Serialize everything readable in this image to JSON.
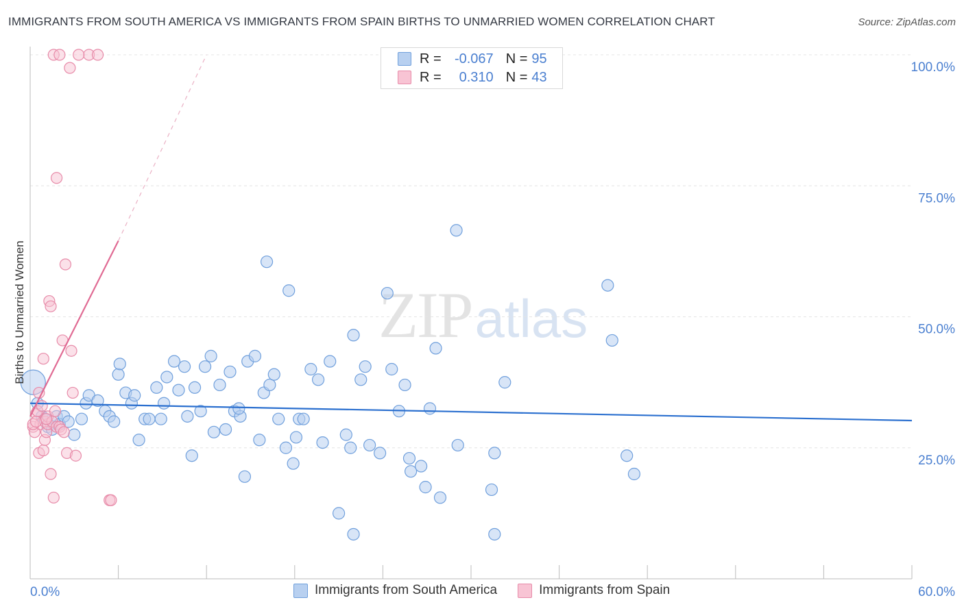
{
  "title": "IMMIGRANTS FROM SOUTH AMERICA VS IMMIGRANTS FROM SPAIN BIRTHS TO UNMARRIED WOMEN CORRELATION CHART",
  "source": "Source: ZipAtlas.com",
  "watermark": {
    "zip": "ZIP",
    "atlas": "atlas"
  },
  "legend": {
    "rows": [
      {
        "r_label": "R =",
        "r_value": "-0.067",
        "n_label": "N =",
        "n_value": "95"
      },
      {
        "r_label": "R =",
        "r_value": "0.310",
        "n_label": "N =",
        "n_value": "43"
      }
    ]
  },
  "colors": {
    "blue_fill": "#b8d0f0",
    "blue_stroke": "#6f9fdc",
    "blue_line": "#2a6fcf",
    "pink_fill": "#f8c4d4",
    "pink_stroke": "#e78aa8",
    "pink_line": "#e06a93",
    "grid": "#e4e4e4",
    "axis_text": "#4a7fd0"
  },
  "chart_data": {
    "type": "scatter",
    "title": "IMMIGRANTS FROM SOUTH AMERICA VS IMMIGRANTS FROM SPAIN BIRTHS TO UNMARRIED WOMEN CORRELATION CHART",
    "xlabel": "",
    "ylabel": "Births to Unmarried Women",
    "xlim": [
      0,
      60
    ],
    "ylim": [
      0,
      100
    ],
    "x_tick_labels": [
      "0.0%",
      "60.0%"
    ],
    "y_ticks": [
      25,
      50,
      75,
      100
    ],
    "y_tick_labels": [
      "25.0%",
      "50.0%",
      "75.0%",
      "100.0%"
    ],
    "series": [
      {
        "name": "Immigrants from South America",
        "color": "blue",
        "r": -0.067,
        "n": 95,
        "trend": {
          "x": [
            0,
            60
          ],
          "y": [
            33.5,
            30.2
          ]
        },
        "points": [
          [
            0.2,
            37.5
          ],
          [
            0.5,
            33.5
          ],
          [
            0.8,
            31
          ],
          [
            1,
            30.5
          ],
          [
            1.2,
            29
          ],
          [
            1.5,
            28.5
          ],
          [
            1.8,
            31
          ],
          [
            2,
            29.5
          ],
          [
            2.3,
            31
          ],
          [
            2.6,
            30
          ],
          [
            3,
            27.5
          ],
          [
            3.5,
            30.5
          ],
          [
            3.8,
            33.5
          ],
          [
            4,
            35
          ],
          [
            4.6,
            34
          ],
          [
            5.1,
            32
          ],
          [
            5.4,
            31
          ],
          [
            5.7,
            30
          ],
          [
            6,
            39
          ],
          [
            6.5,
            35.5
          ],
          [
            6.1,
            41
          ],
          [
            6.9,
            33.5
          ],
          [
            7.4,
            26.5
          ],
          [
            7.1,
            35
          ],
          [
            7.8,
            30.5
          ],
          [
            8.1,
            30.5
          ],
          [
            8.6,
            36.5
          ],
          [
            8.9,
            30.5
          ],
          [
            9.3,
            38.5
          ],
          [
            9.1,
            33.5
          ],
          [
            9.8,
            41.5
          ],
          [
            10.1,
            36
          ],
          [
            10.5,
            40.5
          ],
          [
            10.7,
            31
          ],
          [
            11,
            23.5
          ],
          [
            11.2,
            36.5
          ],
          [
            11.6,
            32
          ],
          [
            11.9,
            40.5
          ],
          [
            12.3,
            42.5
          ],
          [
            12.5,
            28
          ],
          [
            12.9,
            37
          ],
          [
            13.3,
            28.5
          ],
          [
            13.6,
            39.5
          ],
          [
            13.9,
            32
          ],
          [
            14.3,
            31
          ],
          [
            14.8,
            41.5
          ],
          [
            14.6,
            19.5
          ],
          [
            14.2,
            32.5
          ],
          [
            15.3,
            42.5
          ],
          [
            15.9,
            35.5
          ],
          [
            15.6,
            26.5
          ],
          [
            16.3,
            37
          ],
          [
            16.6,
            39
          ],
          [
            16.1,
            60.5
          ],
          [
            16.9,
            30.5
          ],
          [
            17.4,
            25
          ],
          [
            17.9,
            22
          ],
          [
            17.6,
            55
          ],
          [
            18.1,
            27
          ],
          [
            18.3,
            30.5
          ],
          [
            18.6,
            30.5
          ],
          [
            19.1,
            40
          ],
          [
            19.6,
            38
          ],
          [
            19.9,
            26
          ],
          [
            20.4,
            41.5
          ],
          [
            21,
            12.5
          ],
          [
            21.5,
            27.5
          ],
          [
            21.8,
            25
          ],
          [
            22,
            46.5
          ],
          [
            22.5,
            38
          ],
          [
            22.8,
            40.5
          ],
          [
            23.1,
            25.5
          ],
          [
            23.8,
            24
          ],
          [
            24.3,
            54.5
          ],
          [
            24.6,
            40
          ],
          [
            25.1,
            32
          ],
          [
            25.5,
            37
          ],
          [
            25.8,
            23
          ],
          [
            25.9,
            20.5
          ],
          [
            26.6,
            21.5
          ],
          [
            26.9,
            17.5
          ],
          [
            27.2,
            32.5
          ],
          [
            27.6,
            44
          ],
          [
            27.9,
            15.5
          ],
          [
            29.1,
            25.5
          ],
          [
            29,
            66.5
          ],
          [
            31.4,
            17
          ],
          [
            31.6,
            24
          ],
          [
            31.6,
            8.5
          ],
          [
            32.3,
            37.5
          ],
          [
            39.3,
            56
          ],
          [
            39.6,
            45.5
          ],
          [
            40.6,
            23.5
          ],
          [
            41.1,
            20
          ],
          [
            22,
            8.5
          ]
        ],
        "big_point_radius_note": "one enlarged point at x=0.2"
      },
      {
        "name": "Immigrants from Spain",
        "color": "pink",
        "r": 0.31,
        "n": 43,
        "trend": {
          "x": [
            0,
            6
          ],
          "y": [
            31,
            64.5
          ]
        },
        "trend_extension": {
          "x": [
            6,
            12
          ],
          "y": [
            64.5,
            100
          ]
        },
        "points": [
          [
            0.2,
            29
          ],
          [
            0.3,
            28
          ],
          [
            0.4,
            31.5
          ],
          [
            0.5,
            32
          ],
          [
            0.6,
            35.5
          ],
          [
            0.6,
            24
          ],
          [
            0.7,
            29.5
          ],
          [
            0.8,
            33
          ],
          [
            0.9,
            24.5
          ],
          [
            1,
            26.5
          ],
          [
            1,
            30
          ],
          [
            1.1,
            28
          ],
          [
            1.2,
            29.5
          ],
          [
            1.2,
            31
          ],
          [
            1.3,
            53
          ],
          [
            1.4,
            52
          ],
          [
            1.4,
            20
          ],
          [
            1.5,
            30
          ],
          [
            1.6,
            15.5
          ],
          [
            1.7,
            32
          ],
          [
            1.8,
            29
          ],
          [
            2,
            29
          ],
          [
            2.1,
            28.5
          ],
          [
            2.2,
            45.5
          ],
          [
            2.3,
            28
          ],
          [
            2.4,
            60
          ],
          [
            2.5,
            24
          ],
          [
            2.7,
            97.5
          ],
          [
            2.8,
            43.5
          ],
          [
            2.9,
            35.5
          ],
          [
            3.1,
            23.5
          ],
          [
            4,
            100
          ],
          [
            3.3,
            100
          ],
          [
            4.6,
            100
          ],
          [
            5.4,
            15
          ],
          [
            5.5,
            15
          ],
          [
            1.8,
            76.5
          ],
          [
            1.6,
            100
          ],
          [
            0.2,
            29.5
          ],
          [
            0.4,
            30
          ],
          [
            0.9,
            42
          ],
          [
            1.1,
            30.5
          ],
          [
            2,
            100
          ]
        ]
      }
    ]
  },
  "bottom_legend": [
    {
      "label": "Immigrants from South America"
    },
    {
      "label": "Immigrants from Spain"
    }
  ]
}
